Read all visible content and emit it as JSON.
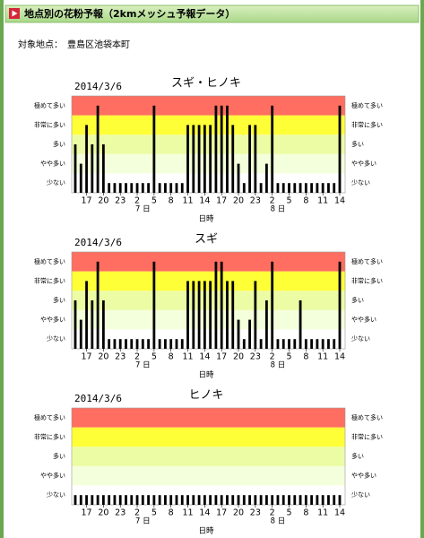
{
  "header": {
    "title": "地点別の花粉予報（2kmメッシュ予報データ）"
  },
  "location": {
    "label": "対象地点：",
    "value": "豊島区池袋本町"
  },
  "chart_data": [
    {
      "type": "bar",
      "subtitle": "2014/3/6",
      "title": "スギ・ヒノキ",
      "xlabel": "日時",
      "color": "#000000",
      "band_colors": [
        "#ffffff",
        "#f4ffdc",
        "#ecfca4",
        "#ffff38",
        "#ff6e60"
      ],
      "ylim": [
        0.5,
        5.5
      ],
      "yticks": [
        {
          "value": 1,
          "label": "少ない"
        },
        {
          "value": 2,
          "label": "やや多い"
        },
        {
          "value": 3,
          "label": "多い"
        },
        {
          "value": 4,
          "label": "非常に多い"
        },
        {
          "value": 5,
          "label": "極めて多い"
        }
      ],
      "categories": [
        null,
        null,
        "17",
        null,
        null,
        "20",
        null,
        null,
        "23",
        null,
        null,
        "2",
        null,
        null,
        "5",
        null,
        null,
        "8",
        null,
        null,
        "11",
        null,
        null,
        "14",
        null,
        null,
        "17",
        null,
        null,
        "20",
        null,
        null,
        "23",
        null,
        null,
        "2",
        null,
        null,
        "5",
        null,
        null,
        "8",
        null,
        null,
        "11",
        null,
        null,
        "14"
      ],
      "days": [
        null,
        null,
        null,
        null,
        null,
        null,
        null,
        null,
        null,
        null,
        null,
        "7 日",
        null,
        null,
        null,
        null,
        null,
        null,
        null,
        null,
        null,
        null,
        null,
        null,
        null,
        null,
        null,
        null,
        null,
        null,
        null,
        null,
        null,
        null,
        null,
        "8 日",
        null,
        null,
        null,
        null,
        null,
        null,
        null,
        null,
        null,
        null,
        null,
        null
      ],
      "values": [
        3,
        2,
        4,
        3,
        5,
        3,
        1,
        1,
        1,
        1,
        1,
        1,
        1,
        1,
        5,
        1,
        1,
        1,
        1,
        1,
        4,
        4,
        4,
        4,
        4,
        5,
        5,
        5,
        4,
        2,
        1,
        4,
        4,
        1,
        2,
        5,
        1,
        1,
        1,
        1,
        1,
        1,
        1,
        1,
        1,
        1,
        1,
        5
      ]
    },
    {
      "type": "bar",
      "subtitle": "2014/3/6",
      "title": "スギ",
      "xlabel": "日時",
      "color": "#000000",
      "band_colors": [
        "#ffffff",
        "#f4ffdc",
        "#ecfca4",
        "#ffff38",
        "#ff6e60"
      ],
      "ylim": [
        0.5,
        5.5
      ],
      "yticks": [
        {
          "value": 1,
          "label": "少ない"
        },
        {
          "value": 2,
          "label": "やや多い"
        },
        {
          "value": 3,
          "label": "多い"
        },
        {
          "value": 4,
          "label": "非常に多い"
        },
        {
          "value": 5,
          "label": "極めて多い"
        }
      ],
      "categories": [
        null,
        null,
        "17",
        null,
        null,
        "20",
        null,
        null,
        "23",
        null,
        null,
        "2",
        null,
        null,
        "5",
        null,
        null,
        "8",
        null,
        null,
        "11",
        null,
        null,
        "14",
        null,
        null,
        "17",
        null,
        null,
        "20",
        null,
        null,
        "23",
        null,
        null,
        "2",
        null,
        null,
        "5",
        null,
        null,
        "8",
        null,
        null,
        "11",
        null,
        null,
        "14"
      ],
      "days": [
        null,
        null,
        null,
        null,
        null,
        null,
        null,
        null,
        null,
        null,
        null,
        "7 日",
        null,
        null,
        null,
        null,
        null,
        null,
        null,
        null,
        null,
        null,
        null,
        null,
        null,
        null,
        null,
        null,
        null,
        null,
        null,
        null,
        null,
        null,
        null,
        "8 日",
        null,
        null,
        null,
        null,
        null,
        null,
        null,
        null,
        null,
        null,
        null,
        null
      ],
      "values": [
        3,
        2,
        4,
        3,
        5,
        3,
        1,
        1,
        1,
        1,
        1,
        1,
        1,
        1,
        5,
        1,
        1,
        1,
        1,
        1,
        4,
        4,
        4,
        4,
        4,
        5,
        5,
        4,
        4,
        2,
        1,
        2,
        4,
        1,
        3,
        5,
        1,
        1,
        1,
        1,
        3,
        1,
        1,
        1,
        1,
        1,
        1,
        5
      ]
    },
    {
      "type": "bar",
      "subtitle": "2014/3/6",
      "title": "ヒノキ",
      "xlabel": "日時",
      "color": "#000000",
      "band_colors": [
        "#ffffff",
        "#f4ffdc",
        "#ecfca4",
        "#ffff38",
        "#ff6e60"
      ],
      "ylim": [
        0.5,
        5.5
      ],
      "yticks": [
        {
          "value": 1,
          "label": "少ない"
        },
        {
          "value": 2,
          "label": "やや多い"
        },
        {
          "value": 3,
          "label": "多い"
        },
        {
          "value": 4,
          "label": "非常に多い"
        },
        {
          "value": 5,
          "label": "極めて多い"
        }
      ],
      "categories": [
        null,
        null,
        "17",
        null,
        null,
        "20",
        null,
        null,
        "23",
        null,
        null,
        "2",
        null,
        null,
        "5",
        null,
        null,
        "8",
        null,
        null,
        "11",
        null,
        null,
        "14",
        null,
        null,
        "17",
        null,
        null,
        "20",
        null,
        null,
        "23",
        null,
        null,
        "2",
        null,
        null,
        "5",
        null,
        null,
        "8",
        null,
        null,
        "11",
        null,
        null,
        "14"
      ],
      "days": [
        null,
        null,
        null,
        null,
        null,
        null,
        null,
        null,
        null,
        null,
        null,
        "7 日",
        null,
        null,
        null,
        null,
        null,
        null,
        null,
        null,
        null,
        null,
        null,
        null,
        null,
        null,
        null,
        null,
        null,
        null,
        null,
        null,
        null,
        null,
        null,
        "8 日",
        null,
        null,
        null,
        null,
        null,
        null,
        null,
        null,
        null,
        null,
        null,
        null
      ],
      "values": [
        1,
        1,
        1,
        1,
        1,
        1,
        1,
        1,
        1,
        1,
        1,
        1,
        1,
        1,
        1,
        1,
        1,
        1,
        1,
        1,
        1,
        1,
        1,
        1,
        1,
        1,
        1,
        1,
        1,
        1,
        1,
        1,
        1,
        1,
        1,
        1,
        1,
        1,
        1,
        1,
        1,
        1,
        1,
        1,
        1,
        1,
        1,
        1
      ]
    }
  ]
}
